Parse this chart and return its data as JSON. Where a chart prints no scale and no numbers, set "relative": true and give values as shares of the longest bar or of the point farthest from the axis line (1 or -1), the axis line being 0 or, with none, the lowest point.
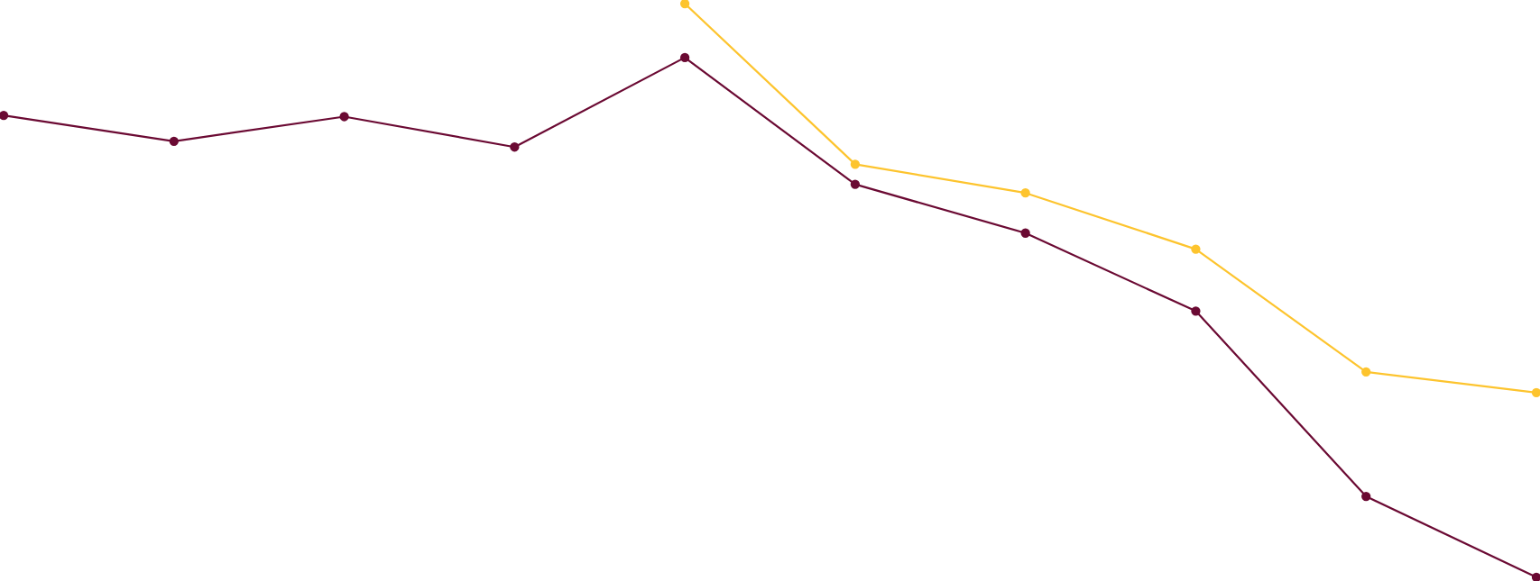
{
  "chart_data": {
    "type": "line",
    "relative": true,
    "marker": "circle",
    "line_style": "solid",
    "categories": [
      null,
      null,
      null,
      null,
      null,
      null,
      null,
      null,
      null,
      null
    ],
    "series": [
      {
        "color": "#6b0a33",
        "values": [
          0.805,
          0.76,
          0.803,
          0.75,
          0.906,
          0.685,
          0.6,
          0.464,
          0.141,
          0
        ]
      },
      {
        "color": "#fdc42e",
        "values": [
          null,
          null,
          null,
          null,
          1,
          0.72,
          0.67,
          0.572,
          0.358,
          0.322
        ]
      }
    ]
  }
}
